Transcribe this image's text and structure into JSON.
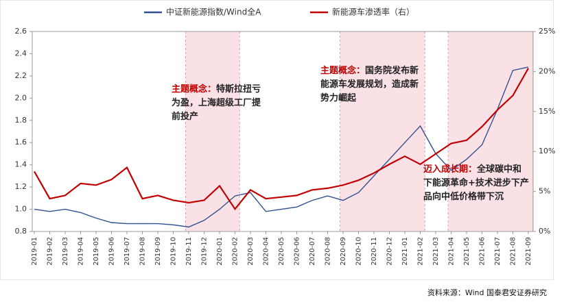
{
  "chart_data": {
    "type": "line",
    "categories": [
      "2019-01",
      "2019-02",
      "2019-03",
      "2019-04",
      "2019-05",
      "2019-06",
      "2019-07",
      "2019-08",
      "2019-09",
      "2019-10",
      "2019-11",
      "2019-12",
      "2020-01",
      "2020-02",
      "2020-03",
      "2020-04",
      "2020-05",
      "2020-06",
      "2020-07",
      "2020-08",
      "2020-09",
      "2020-10",
      "2020-11",
      "2020-12",
      "2021-01",
      "2021-02",
      "2021-03",
      "2021-04",
      "2021-05",
      "2021-06",
      "2021-07",
      "2021-08",
      "2021-09"
    ],
    "series": [
      {
        "name": "中证新能源指数/Wind全A",
        "color": "#2f4f8f",
        "axis": "y",
        "values": [
          1.0,
          0.98,
          1.0,
          0.97,
          0.92,
          0.88,
          0.87,
          0.87,
          0.87,
          0.86,
          0.84,
          0.9,
          1.0,
          1.12,
          1.15,
          0.98,
          1.0,
          1.02,
          1.08,
          1.12,
          1.08,
          1.15,
          1.3,
          1.45,
          1.6,
          1.75,
          1.5,
          1.35,
          1.45,
          1.58,
          1.9,
          2.25,
          2.28
        ]
      },
      {
        "name": "新能源车渗透率（右）",
        "color": "#c00000",
        "axis": "y2",
        "values": [
          7.5,
          4.1,
          4.5,
          6.0,
          5.8,
          6.5,
          8.0,
          4.1,
          4.5,
          3.9,
          3.6,
          3.9,
          5.7,
          2.8,
          5.2,
          4.1,
          4.3,
          4.5,
          5.2,
          5.4,
          5.8,
          6.4,
          7.3,
          8.4,
          9.4,
          8.4,
          9.7,
          11.0,
          11.4,
          13.1,
          15.2,
          17.0,
          20.4
        ]
      }
    ],
    "ylim": [
      0.8,
      2.6
    ],
    "yticks": [
      {
        "value": 0.8,
        "label": "0.8"
      },
      {
        "value": 1.0,
        "label": "1.0"
      },
      {
        "value": 1.2,
        "label": "1.2"
      },
      {
        "value": 1.4,
        "label": "1.4"
      },
      {
        "value": 1.6,
        "label": "1.6"
      },
      {
        "value": 1.8,
        "label": "1.8"
      },
      {
        "value": 2.0,
        "label": "2.0"
      },
      {
        "value": 2.2,
        "label": "2.2"
      },
      {
        "value": 2.4,
        "label": "2.4"
      },
      {
        "value": 2.6,
        "label": "2.6"
      }
    ],
    "y2lim": [
      0,
      25
    ],
    "y2ticks": [
      {
        "value": 0,
        "label": "0%"
      },
      {
        "value": 5,
        "label": "5%"
      },
      {
        "value": 10,
        "label": "10%"
      },
      {
        "value": 15,
        "label": "15%"
      },
      {
        "value": 20,
        "label": "20%"
      },
      {
        "value": 25,
        "label": "25%"
      }
    ],
    "shaded_periods": [
      {
        "from": "2019-11",
        "to": "2020-02"
      },
      {
        "from": "2020-09",
        "to": "2021-02"
      },
      {
        "from": "2021-04",
        "to": "2021-09"
      }
    ],
    "shade_color": "#f8d7dc",
    "annotations": [
      {
        "lead": "主题概念：",
        "lines": [
          "特斯拉扭亏",
          "为盈，上海超级工厂提",
          "前投产"
        ]
      },
      {
        "lead": "主题概念：",
        "lines": [
          "国务院发布新",
          "能源车发展规划，造成新",
          "势力崛起"
        ]
      },
      {
        "lead": "迈入成长期：",
        "lines": [
          "全球碳中和",
          "下能源革命+技术进步下产",
          "品向中低价格带下沉"
        ]
      }
    ],
    "source": "资料来源：Wind 国泰君安证券研究"
  }
}
